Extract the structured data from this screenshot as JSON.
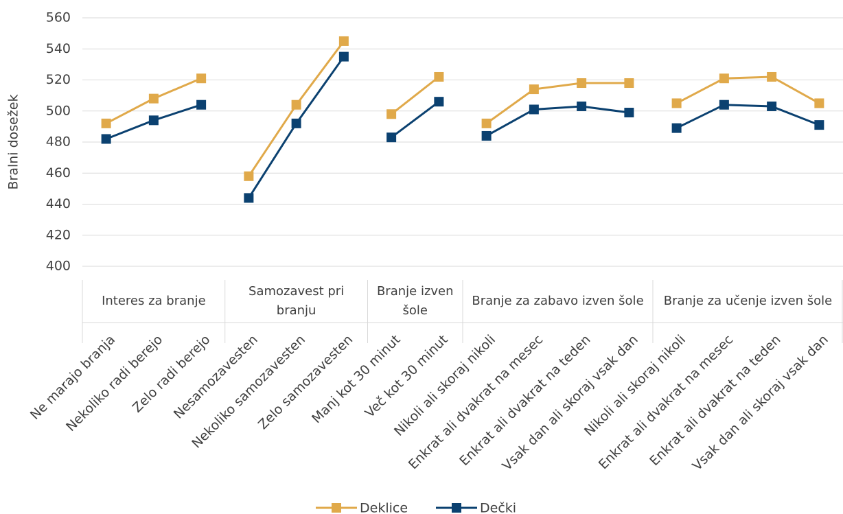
{
  "chart_data": {
    "type": "line",
    "y_label": "Bralni dosežek",
    "groups": [
      {
        "name": "Interes za branje",
        "categories": [
          "Ne marajo branja",
          "Nekoliko radi berejo",
          "Zelo radi berejo"
        ]
      },
      {
        "name": "Samozavest pri branju",
        "categories": [
          "Nesamozavesten",
          "Nekoliko samozavesten",
          "Zelo samozavesten"
        ]
      },
      {
        "name": "Branje izven šole",
        "categories": [
          "Manj kot 30 minut",
          "Več kot 30 minut"
        ]
      },
      {
        "name": "Branje za zabavo izven šole",
        "categories": [
          "Nikoli ali skoraj nikoli",
          "Enkrat ali dvakrat na mesec",
          "Enkrat ali dvakrat na teden",
          "Vsak dan ali skoraj vsak dan"
        ]
      },
      {
        "name": "Branje za učenje izven šole",
        "categories": [
          "Nikoli ali skoraj nikoli",
          "Enkrat ali dvakrat na mesec",
          "Enkrat ali dvakrat na teden",
          "Vsak dan ali skoraj vsak dan"
        ]
      }
    ],
    "series": [
      {
        "name": "Deklice",
        "color": "#e0a94a",
        "values": [
          492,
          508,
          521,
          458,
          504,
          545,
          498,
          522,
          492,
          514,
          518,
          518,
          505,
          521,
          522,
          505
        ]
      },
      {
        "name": "Dečki",
        "color": "#0b4170",
        "values": [
          482,
          494,
          504,
          444,
          492,
          535,
          483,
          506,
          484,
          501,
          503,
          499,
          489,
          504,
          503,
          491
        ]
      }
    ],
    "ylim": [
      400,
      560
    ],
    "yticks": [
      400,
      420,
      440,
      460,
      480,
      500,
      520,
      540,
      560
    ],
    "grid": true
  }
}
